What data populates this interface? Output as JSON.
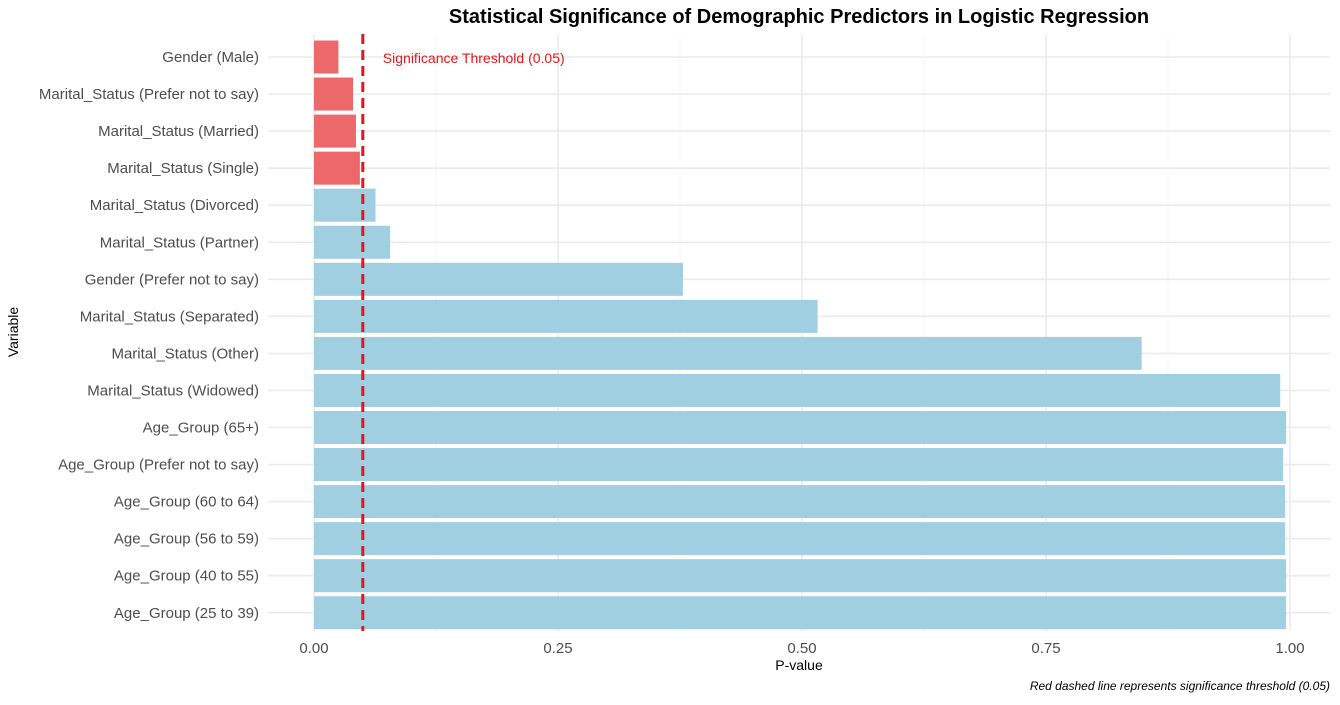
{
  "chart_data": {
    "type": "bar",
    "orientation": "horizontal",
    "title": "Statistical Significance of Demographic Predictors in Logistic Regression",
    "xlabel": "P-value",
    "ylabel": "Variable",
    "caption": "Red dashed line represents significance threshold (0.05)",
    "xlim": [
      0,
      1
    ],
    "xticks": [
      0,
      0.25,
      0.5,
      0.75,
      1
    ],
    "xtick_labels": [
      "0.00",
      "0.25",
      "0.50",
      "0.75",
      "1.00"
    ],
    "grid": true,
    "threshold": {
      "value": 0.05,
      "label": "Significance Threshold (0.05)",
      "color": "#e8141c",
      "style": "dashed"
    },
    "colors": {
      "significant": "#ec686b",
      "not_significant": "#9fcfe0",
      "grid": "#ebebeb"
    },
    "categories": [
      "Gender (Male)",
      "Marital_Status (Prefer not to say)",
      "Marital_Status (Married)",
      "Marital_Status (Single)",
      "Marital_Status (Divorced)",
      "Marital_Status (Partner)",
      "Gender (Prefer not to say)",
      "Marital_Status (Separated)",
      "Marital_Status (Other)",
      "Marital_Status (Widowed)",
      "Age_Group (65+)",
      "Age_Group (Prefer not to say)",
      "Age_Group (60 to 64)",
      "Age_Group (56 to 59)",
      "Age_Group (40 to 55)",
      "Age_Group (25 to 39)"
    ],
    "values": [
      0.025,
      0.04,
      0.043,
      0.047,
      0.063,
      0.078,
      0.378,
      0.516,
      0.848,
      0.99,
      0.996,
      0.993,
      0.995,
      0.995,
      0.996,
      0.996
    ],
    "significant": [
      true,
      true,
      true,
      true,
      false,
      false,
      false,
      false,
      false,
      false,
      false,
      false,
      false,
      false,
      false,
      false
    ]
  }
}
